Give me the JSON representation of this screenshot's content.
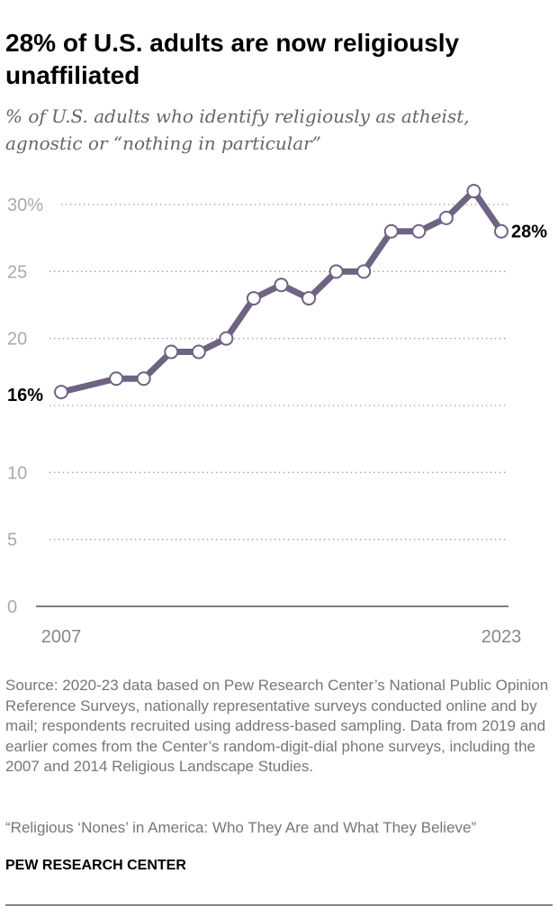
{
  "title": "28% of U.S. adults are now religiously unaffiliated",
  "subtitle": "% of U.S. adults who identify religiously as atheist, agnostic or “nothing in particular”",
  "source": "Source: 2020-23 data based on Pew Research Center’s National Public Opinion Reference Surveys, nationally representative surveys conducted online and by mail; respondents recruited using address-based sampling. Data from 2019 and earlier comes from the Center’s random-digit-dial phone surveys, including the 2007 and 2014 Religious Landscape Studies.",
  "note": "“Religious ‘Nones’ in America: Who They Are and What They Believe”",
  "brand": "PEW RESEARCH CENTER",
  "colors": {
    "line": "#6e6383",
    "grid": "#999999",
    "tick": "#aaaaaa"
  },
  "chart_data": {
    "type": "line",
    "title": "28% of U.S. adults are now religiously unaffiliated",
    "xlabel": "",
    "ylabel": "",
    "x": [
      2007,
      2009,
      2010,
      2011,
      2012,
      2013,
      2014,
      2015,
      2016,
      2017,
      2018,
      2019,
      2020,
      2021,
      2022,
      2023
    ],
    "series": [
      {
        "name": "Religiously unaffiliated",
        "values": [
          16,
          17,
          17,
          19,
          19,
          20,
          23,
          24,
          23,
          25,
          25,
          28,
          28,
          29,
          31,
          28
        ]
      }
    ],
    "ylim": [
      0,
      30
    ],
    "xlim": [
      2007,
      2023
    ],
    "yticks": [
      0,
      5,
      10,
      15,
      20,
      25,
      30
    ],
    "ytick_labels": [
      "0",
      "5",
      "10",
      "",
      "20",
      "25",
      "30%"
    ],
    "xtick_labels": [
      "2007",
      "2023"
    ],
    "annotations": [
      {
        "x": 2007,
        "label": "16%"
      },
      {
        "x": 2023,
        "label": "28%"
      }
    ],
    "grid": true
  }
}
